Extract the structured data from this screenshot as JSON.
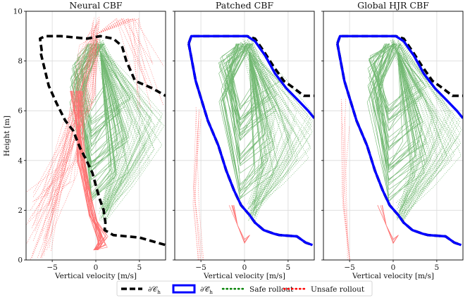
{
  "chart_data": {
    "type": "line",
    "shared_axes": {
      "xlabel": "Vertical velocity [m/s]",
      "ylabel": "Height [m]",
      "xlim": [
        -8,
        8
      ],
      "ylim": [
        0,
        10
      ],
      "xticks": [
        -5,
        0,
        5
      ],
      "xtick_labels": [
        "−5",
        "0",
        "5"
      ],
      "yticks": [
        0,
        2,
        4,
        6,
        8,
        10
      ],
      "ytick_labels": [
        "0",
        "2",
        "4",
        "6",
        "8",
        "10"
      ],
      "grid": true
    },
    "colors": {
      "boundary_h": "#000000",
      "boundary_hat": "#0000ff",
      "safe": "#008000",
      "unsafe": "#ff0000"
    },
    "legend": {
      "placement": "bottom-center",
      "entries": [
        {
          "label": "∂𝒞",
          "sub": "h",
          "style": "dashed-black"
        },
        {
          "label": "∂𝒞̂",
          "sub": "h",
          "style": "solid-blue"
        },
        {
          "label": "Safe rollout",
          "style": "dotted-green"
        },
        {
          "label": "Unsafe rollout",
          "style": "dotted-red"
        }
      ]
    },
    "panels": [
      {
        "title": "Neural CBF",
        "series": [
          {
            "role": "boundary_h",
            "x": [
              -6.2,
              -6.4,
              -5.8,
              -4,
              -1,
              0.5,
              2,
              3,
              3.5,
              4.5,
              6.5,
              7.5,
              8
            ],
            "y": [
              8.4,
              8.9,
              9.0,
              9.0,
              8.9,
              9.0,
              8.9,
              8.6,
              8.0,
              7.2,
              6.9,
              6.7,
              6.6
            ]
          },
          {
            "role": "boundary_h",
            "x": [
              -6.3,
              -5.4,
              -4.5,
              -3.5,
              -2.6,
              -1.8,
              -1.2,
              -0.4,
              0.4,
              0.9,
              1.1,
              1.0,
              2,
              5,
              7,
              8
            ],
            "y": [
              8.3,
              7.0,
              6.3,
              5.6,
              5.2,
              4.5,
              4.1,
              3.5,
              2.5,
              2.0,
              1.5,
              1.2,
              1.0,
              0.9,
              0.7,
              0.6
            ]
          }
        ]
      },
      {
        "title": "Patched CBF",
        "series": [
          {
            "role": "boundary_h",
            "x": [
              -6.4,
              -6.1,
              -3,
              0.3,
              1.2,
              2.2,
              3.3,
              4.5,
              5.7,
              6.8,
              8
            ],
            "y": [
              8.7,
              9.0,
              9.0,
              9.0,
              8.9,
              8.4,
              7.8,
              7.2,
              6.9,
              6.6,
              6.6
            ]
          },
          {
            "role": "boundary_hat",
            "x": [
              -6.4,
              -6.1,
              -3,
              0.3,
              1.2,
              2.4,
              3.5,
              4.8,
              6.2,
              7.3,
              8
            ],
            "y": [
              8.7,
              9.0,
              9.0,
              9.0,
              8.8,
              8.2,
              7.5,
              6.9,
              6.4,
              6.0,
              5.7
            ]
          },
          {
            "role": "boundary_h",
            "x": [
              -6.4,
              -5.6,
              -4.2,
              -3,
              -2.1,
              -1.2,
              -0.4,
              0.6,
              1.2,
              2.2,
              3.4,
              4,
              6,
              7,
              7.8
            ],
            "y": [
              8.7,
              7.2,
              5.6,
              4.6,
              3.6,
              2.8,
              2.2,
              1.8,
              1.5,
              1.2,
              1.05,
              1.0,
              0.95,
              0.7,
              0.6
            ]
          },
          {
            "role": "boundary_hat",
            "x": [
              -6.4,
              -5.6,
              -4.2,
              -3,
              -2.1,
              -1.2,
              -0.4,
              0.6,
              1.2,
              2.2,
              3.4,
              4,
              6,
              7,
              7.8
            ],
            "y": [
              8.7,
              7.2,
              5.6,
              4.6,
              3.6,
              2.8,
              2.2,
              1.8,
              1.5,
              1.2,
              1.05,
              1.0,
              0.95,
              0.7,
              0.6
            ]
          }
        ]
      },
      {
        "title": "Global HJR CBF",
        "series": [
          {
            "role": "boundary_h",
            "x": [
              -6.4,
              -6.1,
              -3,
              0.3,
              1.2,
              2.2,
              3.3,
              4.5,
              5.7,
              6.8,
              8
            ],
            "y": [
              8.7,
              9.0,
              9.0,
              9.0,
              8.9,
              8.4,
              7.8,
              7.2,
              6.9,
              6.6,
              6.6
            ]
          },
          {
            "role": "boundary_hat",
            "x": [
              -6.4,
              -6.1,
              -3,
              0.3,
              1.2,
              2.4,
              3.5,
              4.8,
              6.2,
              7.3,
              8
            ],
            "y": [
              8.7,
              9.0,
              9.0,
              9.0,
              8.8,
              8.2,
              7.5,
              6.9,
              6.4,
              6.0,
              5.7
            ]
          },
          {
            "role": "boundary_h",
            "x": [
              -6.4,
              -5.6,
              -4.2,
              -3,
              -2.1,
              -1.2,
              -0.4,
              0.6,
              1.2,
              2.2,
              3.4,
              4,
              6,
              7,
              7.8
            ],
            "y": [
              8.7,
              7.2,
              5.6,
              4.6,
              3.6,
              2.8,
              2.2,
              1.8,
              1.5,
              1.2,
              1.05,
              1.0,
              0.95,
              0.7,
              0.6
            ]
          },
          {
            "role": "boundary_hat",
            "x": [
              -6.4,
              -5.6,
              -4.2,
              -3,
              -2.1,
              -1.2,
              -0.4,
              0.6,
              1.2,
              2.2,
              3.4,
              4,
              6,
              7,
              7.8
            ],
            "y": [
              8.7,
              7.2,
              5.6,
              4.6,
              3.6,
              2.8,
              2.2,
              1.8,
              1.5,
              1.2,
              1.05,
              1.0,
              0.95,
              0.7,
              0.6
            ]
          }
        ]
      }
    ]
  }
}
